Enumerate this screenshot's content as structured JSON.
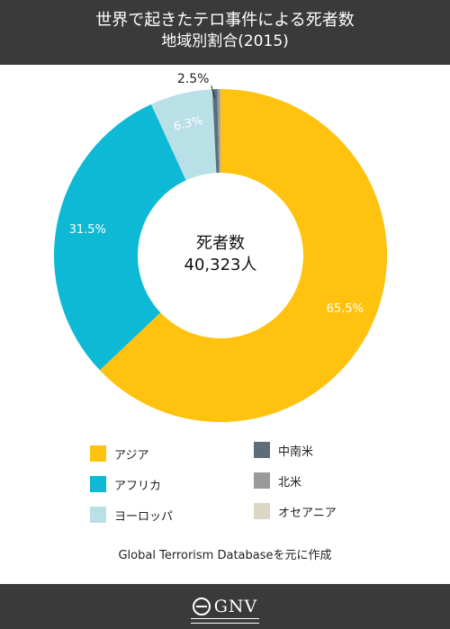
{
  "header": {
    "title_line1": "世界で起きたテロ事件による死者数",
    "title_line2": "地域別割合(2015)"
  },
  "chart_data": {
    "type": "pie",
    "center_label": "死者数",
    "center_value": "40,323人",
    "slices": [
      {
        "name": "アジア",
        "value": 65.5,
        "label": "65.5%",
        "color": "#ffc20e"
      },
      {
        "name": "アフリカ",
        "value": 31.5,
        "label": "31.5%",
        "color": "#0db9d4"
      },
      {
        "name": "ヨーロッパ",
        "value": 6.3,
        "label": "6.3%",
        "color": "#b8e0e6"
      },
      {
        "name": "中南米",
        "value": 0.5,
        "label": "",
        "color": "#5d6e79"
      },
      {
        "name": "北米",
        "value": 0.3,
        "label": "",
        "color": "#9a9a9a"
      },
      {
        "name": "オセアニア",
        "value": 0.02,
        "label": "",
        "color": "#ddd5c6"
      }
    ],
    "callout_label": "2.5%"
  },
  "legend": {
    "items": [
      {
        "label": "アジア",
        "color": "#ffc20e"
      },
      {
        "label": "アフリカ",
        "color": "#0db9d4"
      },
      {
        "label": "ヨーロッパ",
        "color": "#b8e0e6"
      },
      {
        "label": "中南米",
        "color": "#5d6e79"
      },
      {
        "label": "北米",
        "color": "#9a9a9a"
      },
      {
        "label": "オセアニア",
        "color": "#ddd5c6"
      }
    ]
  },
  "source": "Global Terrorism Databaseを元に作成",
  "footer": {
    "logo_text": "GNV"
  }
}
